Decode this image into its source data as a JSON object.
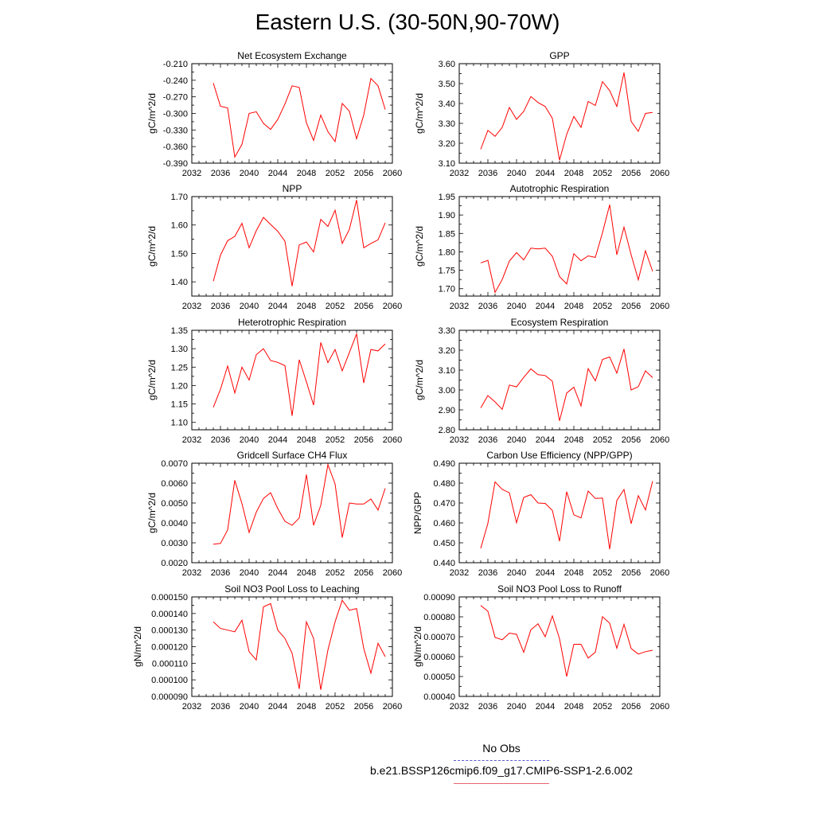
{
  "title": "Eastern U.S. (30-50N,90-70W)",
  "legend": {
    "items": [
      {
        "label": "No Obs",
        "color": "#5b5bd6",
        "style": "dashed"
      },
      {
        "label": "b.e21.BSSP126cmip6.f09_g17.CMIP6-SSP1-2.6.002",
        "color": "#ff0000",
        "style": "solid"
      }
    ]
  },
  "chart_data": [
    {
      "type": "line",
      "title": "Net Ecosystem Exchange",
      "ylabel": "gC/m^2/d",
      "xlim": [
        2032,
        2060
      ],
      "ylim": [
        -0.39,
        -0.21
      ],
      "xticks": [
        "2032",
        "2036",
        "2040",
        "2044",
        "2048",
        "2052",
        "2056",
        "2060"
      ],
      "yticks": [
        "-0.210",
        "-0.240",
        "-0.270",
        "-0.300",
        "-0.330",
        "-0.360",
        "-0.390"
      ],
      "ytick_values": [
        -0.21,
        -0.24,
        -0.27,
        -0.3,
        -0.33,
        -0.36,
        -0.39
      ],
      "series": [
        {
          "color": "#ff0000",
          "x": [
            2035,
            2036,
            2037,
            2038,
            2039,
            2040,
            2041,
            2042,
            2043,
            2044,
            2045,
            2046,
            2047,
            2048,
            2049,
            2050,
            2051,
            2052,
            2053,
            2054,
            2055,
            2056,
            2057,
            2058,
            2059
          ],
          "values": [
            -0.245,
            -0.287,
            -0.29,
            -0.379,
            -0.356,
            -0.3,
            -0.297,
            -0.318,
            -0.329,
            -0.311,
            -0.283,
            -0.25,
            -0.253,
            -0.317,
            -0.349,
            -0.303,
            -0.333,
            -0.351,
            -0.282,
            -0.296,
            -0.346,
            -0.303,
            -0.237,
            -0.25,
            -0.293
          ]
        }
      ]
    },
    {
      "type": "line",
      "title": "GPP",
      "ylabel": "gC/m^2/d",
      "xlim": [
        2032,
        2060
      ],
      "ylim": [
        3.1,
        3.6
      ],
      "xticks": [
        "2032",
        "2036",
        "2040",
        "2044",
        "2048",
        "2052",
        "2056",
        "2060"
      ],
      "yticks": [
        "3.60",
        "3.50",
        "3.40",
        "3.30",
        "3.20",
        "3.10"
      ],
      "ytick_values": [
        3.6,
        3.5,
        3.4,
        3.3,
        3.2,
        3.1
      ],
      "series": [
        {
          "color": "#ff0000",
          "x": [
            2035,
            2036,
            2037,
            2038,
            2039,
            2040,
            2041,
            2042,
            2043,
            2044,
            2045,
            2046,
            2047,
            2048,
            2049,
            2050,
            2051,
            2052,
            2053,
            2054,
            2055,
            2056,
            2057,
            2058,
            2059
          ],
          "values": [
            3.17,
            3.265,
            3.235,
            3.28,
            3.38,
            3.32,
            3.36,
            3.435,
            3.405,
            3.385,
            3.325,
            3.115,
            3.245,
            3.335,
            3.28,
            3.41,
            3.39,
            3.51,
            3.465,
            3.385,
            3.555,
            3.31,
            3.26,
            3.35,
            3.355
          ]
        }
      ]
    },
    {
      "type": "line",
      "title": "NPP",
      "ylabel": "gC/m^2/d",
      "xlim": [
        2032,
        2060
      ],
      "ylim": [
        1.35,
        1.7
      ],
      "xticks": [
        "2032",
        "2036",
        "2040",
        "2044",
        "2048",
        "2052",
        "2056",
        "2060"
      ],
      "yticks": [
        "1.70",
        "1.60",
        "1.50",
        "1.40"
      ],
      "ytick_values": [
        1.7,
        1.6,
        1.5,
        1.4
      ],
      "series": [
        {
          "color": "#ff0000",
          "x": [
            2035,
            2036,
            2037,
            2038,
            2039,
            2040,
            2041,
            2042,
            2043,
            2044,
            2045,
            2046,
            2047,
            2048,
            2049,
            2050,
            2051,
            2052,
            2053,
            2054,
            2055,
            2056,
            2057,
            2058,
            2059
          ],
          "values": [
            1.402,
            1.494,
            1.545,
            1.56,
            1.606,
            1.52,
            1.58,
            1.627,
            1.602,
            1.578,
            1.543,
            1.385,
            1.53,
            1.54,
            1.505,
            1.62,
            1.595,
            1.652,
            1.535,
            1.585,
            1.688,
            1.52,
            1.535,
            1.548,
            1.608
          ]
        }
      ]
    },
    {
      "type": "line",
      "title": "Autotrophic Respiration",
      "ylabel": "gC/m^2/d",
      "xlim": [
        2032,
        2060
      ],
      "ylim": [
        1.68,
        1.95
      ],
      "xticks": [
        "2032",
        "2036",
        "2040",
        "2044",
        "2048",
        "2052",
        "2056",
        "2060"
      ],
      "yticks": [
        "1.95",
        "1.90",
        "1.85",
        "1.80",
        "1.75",
        "1.70"
      ],
      "ytick_values": [
        1.95,
        1.9,
        1.85,
        1.8,
        1.75,
        1.7
      ],
      "series": [
        {
          "color": "#ff0000",
          "x": [
            2035,
            2036,
            2037,
            2038,
            2039,
            2040,
            2041,
            2042,
            2043,
            2044,
            2045,
            2046,
            2047,
            2048,
            2049,
            2050,
            2051,
            2052,
            2053,
            2054,
            2055,
            2056,
            2057,
            2058,
            2059
          ],
          "values": [
            1.77,
            1.777,
            1.69,
            1.725,
            1.775,
            1.798,
            1.778,
            1.81,
            1.808,
            1.81,
            1.788,
            1.733,
            1.713,
            1.795,
            1.776,
            1.789,
            1.785,
            1.852,
            1.928,
            1.792,
            1.867,
            1.792,
            1.724,
            1.803,
            1.747
          ]
        }
      ]
    },
    {
      "type": "line",
      "title": "Heterotrophic Respiration",
      "ylabel": "gC/m^2/d",
      "xlim": [
        2032,
        2060
      ],
      "ylim": [
        1.08,
        1.35
      ],
      "xticks": [
        "2032",
        "2036",
        "2040",
        "2044",
        "2048",
        "2052",
        "2056",
        "2060"
      ],
      "yticks": [
        "1.35",
        "1.30",
        "1.25",
        "1.20",
        "1.15",
        "1.10"
      ],
      "ytick_values": [
        1.35,
        1.3,
        1.25,
        1.2,
        1.15,
        1.1
      ],
      "series": [
        {
          "color": "#ff0000",
          "x": [
            2035,
            2036,
            2037,
            2038,
            2039,
            2040,
            2041,
            2042,
            2043,
            2044,
            2045,
            2046,
            2047,
            2048,
            2049,
            2050,
            2051,
            2052,
            2053,
            2054,
            2055,
            2056,
            2057,
            2058,
            2059
          ],
          "values": [
            1.141,
            1.19,
            1.253,
            1.18,
            1.25,
            1.215,
            1.284,
            1.3,
            1.268,
            1.263,
            1.254,
            1.118,
            1.27,
            1.21,
            1.147,
            1.317,
            1.262,
            1.298,
            1.24,
            1.29,
            1.34,
            1.207,
            1.298,
            1.294,
            1.313
          ]
        }
      ]
    },
    {
      "type": "line",
      "title": "Ecosystem Respiration",
      "ylabel": "gC/m^2/d",
      "xlim": [
        2032,
        2060
      ],
      "ylim": [
        2.8,
        3.3
      ],
      "xticks": [
        "2032",
        "2036",
        "2040",
        "2044",
        "2048",
        "2052",
        "2056",
        "2060"
      ],
      "yticks": [
        "3.30",
        "3.20",
        "3.10",
        "3.00",
        "2.90",
        "2.80"
      ],
      "ytick_values": [
        3.3,
        3.2,
        3.1,
        3.0,
        2.9,
        2.8
      ],
      "series": [
        {
          "color": "#ff0000",
          "x": [
            2035,
            2036,
            2037,
            2038,
            2039,
            2040,
            2041,
            2042,
            2043,
            2044,
            2045,
            2046,
            2047,
            2048,
            2049,
            2050,
            2051,
            2052,
            2053,
            2054,
            2055,
            2056,
            2057,
            2058,
            2059
          ],
          "values": [
            2.91,
            2.972,
            2.94,
            2.903,
            3.025,
            3.016,
            3.063,
            3.106,
            3.077,
            3.073,
            3.044,
            2.845,
            2.985,
            3.014,
            2.92,
            3.107,
            3.046,
            3.153,
            3.166,
            3.085,
            3.206,
            3.0,
            3.017,
            3.096,
            3.062
          ]
        }
      ]
    },
    {
      "type": "line",
      "title": "Gridcell Surface CH4 Flux",
      "ylabel": "gC/m^2/d",
      "xlim": [
        2032,
        2060
      ],
      "ylim": [
        0.002,
        0.007
      ],
      "xticks": [
        "2032",
        "2036",
        "2040",
        "2044",
        "2048",
        "2052",
        "2056",
        "2060"
      ],
      "yticks": [
        "0.0070",
        "0.0060",
        "0.0050",
        "0.0040",
        "0.0030",
        "0.0020"
      ],
      "ytick_values": [
        0.007,
        0.006,
        0.005,
        0.004,
        0.003,
        0.002
      ],
      "series": [
        {
          "color": "#ff0000",
          "x": [
            2035,
            2036,
            2037,
            2038,
            2039,
            2040,
            2041,
            2042,
            2043,
            2044,
            2045,
            2046,
            2047,
            2048,
            2049,
            2050,
            2051,
            2052,
            2053,
            2054,
            2055,
            2056,
            2057,
            2058,
            2059
          ],
          "values": [
            0.00293,
            0.00297,
            0.00365,
            0.00614,
            0.00497,
            0.00352,
            0.00454,
            0.00523,
            0.00552,
            0.00472,
            0.00408,
            0.00388,
            0.00425,
            0.00643,
            0.00388,
            0.00488,
            0.00693,
            0.00596,
            0.00326,
            0.005,
            0.00495,
            0.00495,
            0.0052,
            0.00465,
            0.00574
          ]
        }
      ]
    },
    {
      "type": "line",
      "title": "Carbon Use Efficiency (NPP/GPP)",
      "ylabel": "NPP/GPP",
      "xlim": [
        2032,
        2060
      ],
      "ylim": [
        0.44,
        0.49
      ],
      "xticks": [
        "2032",
        "2036",
        "2040",
        "2044",
        "2048",
        "2052",
        "2056",
        "2060"
      ],
      "yticks": [
        "0.490",
        "0.480",
        "0.470",
        "0.460",
        "0.450",
        "0.440"
      ],
      "ytick_values": [
        0.49,
        0.48,
        0.47,
        0.46,
        0.45,
        0.44
      ],
      "series": [
        {
          "color": "#ff0000",
          "x": [
            2035,
            2036,
            2037,
            2038,
            2039,
            2040,
            2041,
            2042,
            2043,
            2044,
            2045,
            2046,
            2047,
            2048,
            2049,
            2050,
            2051,
            2052,
            2053,
            2054,
            2055,
            2056,
            2057,
            2058,
            2059
          ],
          "values": [
            0.4472,
            0.4598,
            0.4806,
            0.4769,
            0.4751,
            0.4601,
            0.4728,
            0.4742,
            0.47,
            0.4698,
            0.4663,
            0.4508,
            0.4757,
            0.4641,
            0.4625,
            0.476,
            0.4723,
            0.4725,
            0.4468,
            0.4713,
            0.4768,
            0.4596,
            0.4737,
            0.4665,
            0.481
          ]
        }
      ]
    },
    {
      "type": "line",
      "title": "Soil NO3 Pool Loss to Leaching",
      "ylabel": "gN/m^2/d",
      "xlim": [
        2032,
        2060
      ],
      "ylim": [
        9e-05,
        0.00015
      ],
      "xticks": [
        "2032",
        "2036",
        "2040",
        "2044",
        "2048",
        "2052",
        "2056",
        "2060"
      ],
      "yticks": [
        "0.000150",
        "0.000140",
        "0.000130",
        "0.000120",
        "0.000110",
        "0.000100",
        "0.000090"
      ],
      "ytick_values": [
        0.00015,
        0.00014,
        0.00013,
        0.00012,
        0.00011,
        0.0001,
        9e-05
      ],
      "series": [
        {
          "color": "#ff0000",
          "x": [
            2035,
            2036,
            2037,
            2038,
            2039,
            2040,
            2041,
            2042,
            2043,
            2044,
            2045,
            2046,
            2047,
            2048,
            2049,
            2050,
            2051,
            2052,
            2053,
            2054,
            2055,
            2056,
            2057,
            2058,
            2059
          ],
          "values": [
            0.000135,
            0.000131,
            0.00013,
            0.000129,
            0.000136,
            0.000117,
            0.000112,
            0.000144,
            0.000146,
            0.00013,
            0.000125,
            0.000116,
            9.45e-05,
            0.000135,
            0.000125,
            9.4e-05,
            0.000118,
            0.000135,
            0.000148,
            0.000142,
            0.000143,
            0.000119,
            0.000104,
            0.000122,
            0.000114
          ]
        }
      ]
    },
    {
      "type": "line",
      "title": "Soil NO3 Pool Loss to Runoff",
      "ylabel": "gN/m^2/d",
      "xlim": [
        2032,
        2060
      ],
      "ylim": [
        0.0004,
        0.0009
      ],
      "xticks": [
        "2032",
        "2036",
        "2040",
        "2044",
        "2048",
        "2052",
        "2056",
        "2060"
      ],
      "yticks": [
        "0.00090",
        "0.00080",
        "0.00070",
        "0.00060",
        "0.00050",
        "0.00040"
      ],
      "ytick_values": [
        0.0009,
        0.0008,
        0.0007,
        0.0006,
        0.0005,
        0.0004
      ],
      "series": [
        {
          "color": "#ff0000",
          "x": [
            2035,
            2036,
            2037,
            2038,
            2039,
            2040,
            2041,
            2042,
            2043,
            2044,
            2045,
            2046,
            2047,
            2048,
            2049,
            2050,
            2051,
            2052,
            2053,
            2054,
            2055,
            2056,
            2057,
            2058,
            2059
          ],
          "values": [
            0.000857,
            0.000828,
            0.000697,
            0.000685,
            0.000718,
            0.000712,
            0.000622,
            0.000735,
            0.000765,
            0.0007,
            0.000805,
            0.00069,
            0.0005,
            0.000662,
            0.000662,
            0.000593,
            0.000622,
            0.000801,
            0.000768,
            0.000642,
            0.000762,
            0.000641,
            0.000613,
            0.000625,
            0.000632
          ]
        }
      ]
    }
  ]
}
